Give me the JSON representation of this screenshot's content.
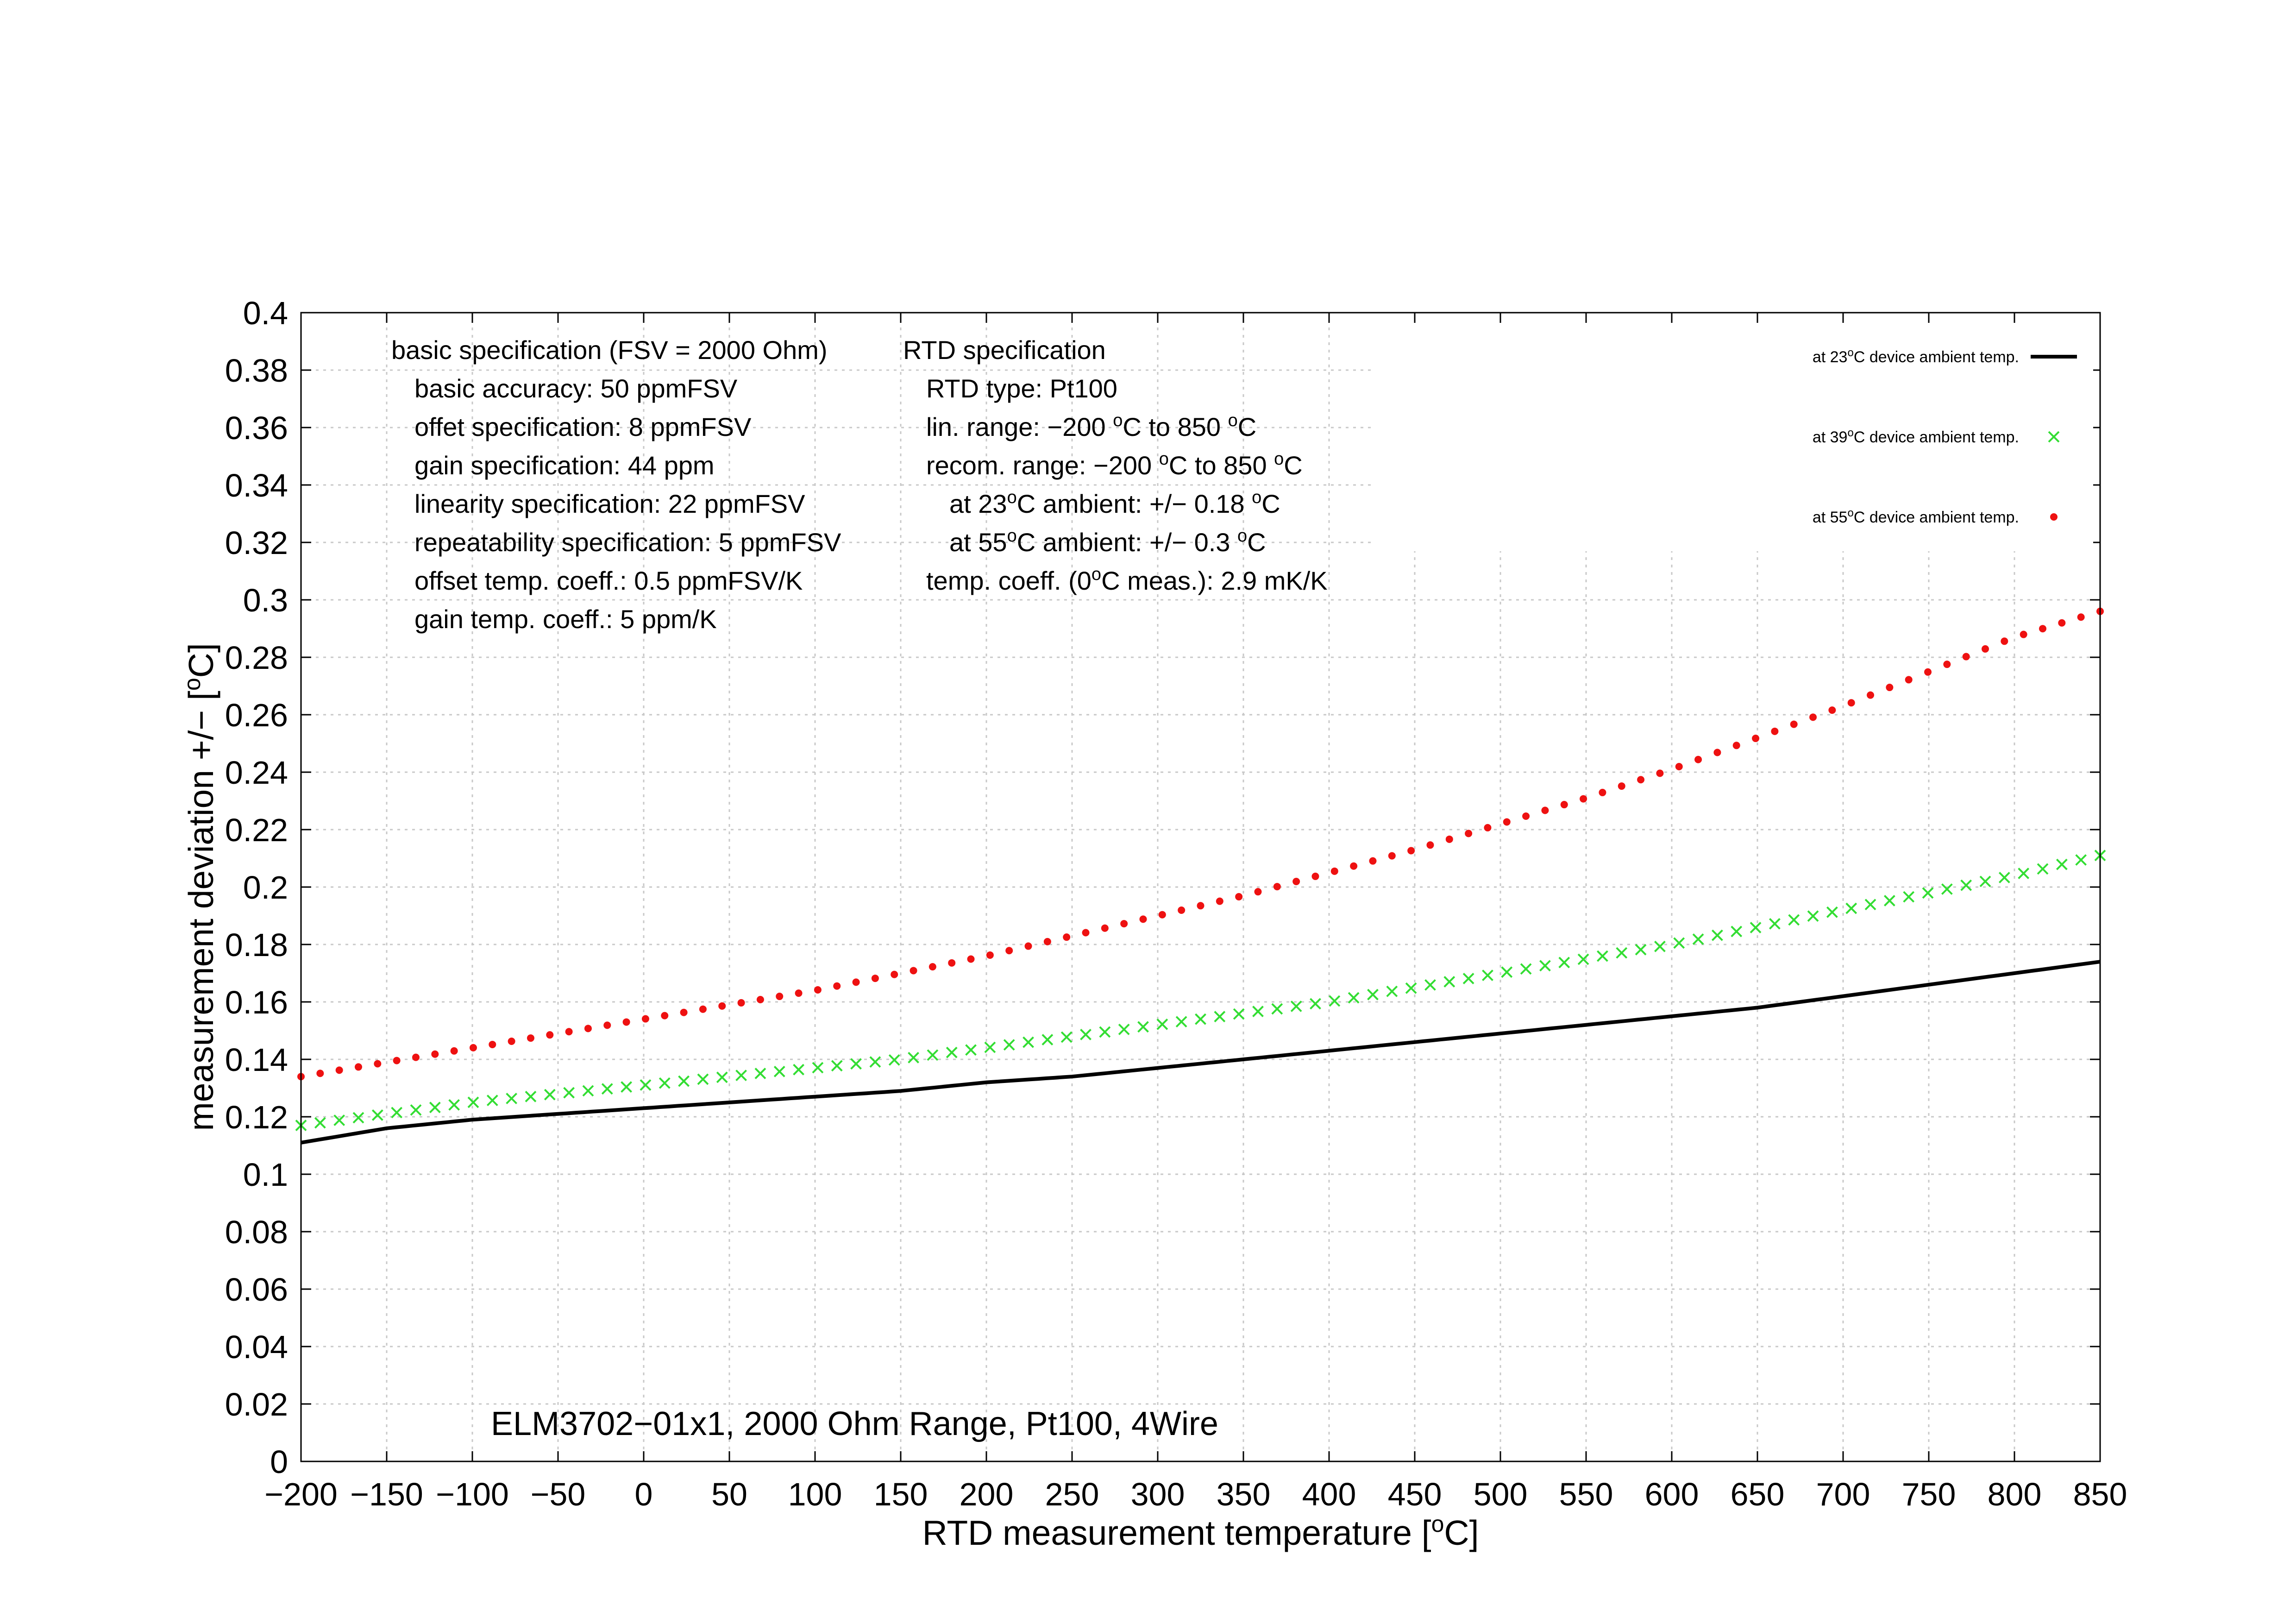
{
  "chart_data": {
    "type": "line",
    "xlabel": "RTD measurement temperature [°C]",
    "xlabel_parts": {
      "pre": "RTD measurement temperature [",
      "sup": "o",
      "post": "C]"
    },
    "ylabel": "measurement deviation +/− [°C]",
    "ylabel_parts": {
      "pre": "measurement deviation +/− [",
      "sup": "o",
      "post": "C]"
    },
    "xlim": [
      -200,
      850
    ],
    "ylim": [
      0,
      0.4
    ],
    "x_ticks": [
      "−200",
      "−150",
      "−100",
      "−50",
      "0",
      "50",
      "100",
      "150",
      "200",
      "250",
      "300",
      "350",
      "400",
      "450",
      "500",
      "550",
      "600",
      "650",
      "700",
      "750",
      "800",
      "850"
    ],
    "y_ticks": [
      "0",
      "0.02",
      "0.04",
      "0.06",
      "0.08",
      "0.1",
      "0.12",
      "0.14",
      "0.16",
      "0.18",
      "0.2",
      "0.22",
      "0.24",
      "0.26",
      "0.28",
      "0.3",
      "0.32",
      "0.34",
      "0.36",
      "0.38",
      "0.4"
    ],
    "grid": true,
    "legend_position": "top-right",
    "x": [
      -200,
      -150,
      -100,
      -50,
      0,
      50,
      100,
      150,
      200,
      250,
      300,
      350,
      400,
      450,
      500,
      550,
      600,
      650,
      700,
      750,
      800,
      850
    ],
    "series": [
      {
        "name": "at 23°C device ambient temp.",
        "name_parts": {
          "pre": "at 23",
          "sup": "o",
          "post": "C device ambient temp."
        },
        "style": "line",
        "color": "#000000",
        "values": [
          0.111,
          0.116,
          0.119,
          0.121,
          0.123,
          0.125,
          0.127,
          0.129,
          0.132,
          0.134,
          0.137,
          0.14,
          0.143,
          0.146,
          0.149,
          0.152,
          0.155,
          0.158,
          0.162,
          0.166,
          0.17,
          0.174
        ]
      },
      {
        "name": "at 39°C device ambient temp.",
        "name_parts": {
          "pre": "at 39",
          "sup": "o",
          "post": "C device ambient temp."
        },
        "style": "cross",
        "color": "#33dd33",
        "values": [
          0.117,
          0.121,
          0.125,
          0.128,
          0.131,
          0.134,
          0.137,
          0.14,
          0.144,
          0.148,
          0.152,
          0.156,
          0.16,
          0.165,
          0.17,
          0.175,
          0.18,
          0.186,
          0.192,
          0.198,
          0.204,
          0.211
        ]
      },
      {
        "name": "at 55°C device ambient temp.",
        "name_parts": {
          "pre": "at 55",
          "sup": "o",
          "post": "C device ambient temp."
        },
        "style": "dot",
        "color": "#ee1111",
        "values": [
          0.134,
          0.139,
          0.144,
          0.149,
          0.154,
          0.159,
          0.164,
          0.17,
          0.176,
          0.183,
          0.19,
          0.197,
          0.205,
          0.213,
          0.222,
          0.231,
          0.241,
          0.252,
          0.263,
          0.275,
          0.287,
          0.296
        ]
      }
    ],
    "annotations": {
      "basic_spec": [
        "basic specification (FSV = 2000 Ohm)",
        "basic accuracy: 50 ppmFSV",
        "offet specification: 8 ppmFSV",
        "gain specification: 44 ppm",
        "linearity specification: 22 ppmFSV",
        "repeatability specification: 5 ppmFSV",
        "offset temp. coeff.: 0.5 ppmFSV/K",
        "gain temp. coeff.: 5 ppm/K"
      ],
      "rtd_spec": [
        {
          "pre": "RTD specification",
          "sup": "",
          "mid": "",
          "sup2": "",
          "post": ""
        },
        {
          "pre": "RTD type: Pt100",
          "sup": "",
          "mid": "",
          "sup2": "",
          "post": ""
        },
        {
          "pre": "lin. range: −200 ",
          "sup": "o",
          "mid": "C to 850 ",
          "sup2": "o",
          "post": "C"
        },
        {
          "pre": "recom. range: −200 ",
          "sup": "o",
          "mid": "C to 850 ",
          "sup2": "o",
          "post": "C"
        },
        {
          "pre": "at 23",
          "sup": "o",
          "mid": "C ambient: +/− 0.18 ",
          "sup2": "o",
          "post": "C"
        },
        {
          "pre": "at 55",
          "sup": "o",
          "mid": "C ambient: +/− 0.3 ",
          "sup2": "o",
          "post": "C"
        },
        {
          "pre": "temp. coeff. (0",
          "sup": "o",
          "mid": "C meas.): 2.9 mK/K",
          "sup2": "",
          "post": ""
        }
      ],
      "device_label": "ELM3702−01x1, 2000 Ohm Range, Pt100, 4Wire"
    }
  }
}
